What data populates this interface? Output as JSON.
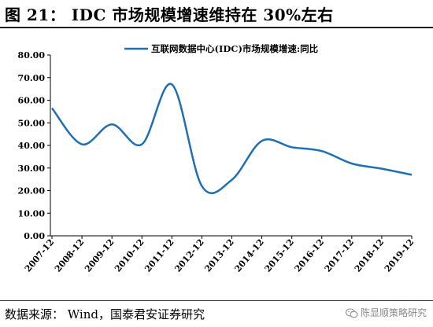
{
  "figure": {
    "title": "图 21： IDC 市场规模增速维持在 30%左右",
    "source": "数据来源： Wind，国泰君安证券研究",
    "watermark": "陈显顺策略研究",
    "watermark_icon": "wechat-icon"
  },
  "chart_data": {
    "type": "line",
    "title": "",
    "xlabel": "",
    "ylabel": "",
    "x": [
      "2007-12",
      "2008-12",
      "2009-12",
      "2010-12",
      "2011-12",
      "2012-12",
      "2013-12",
      "2014-12",
      "2015-12",
      "2016-12",
      "2017-12",
      "2018-12",
      "2019-12"
    ],
    "series": [
      {
        "name": "互联网数据中心(IDC)市场规模增速:同比",
        "values": [
          56.5,
          40.5,
          49.3,
          40.5,
          67.0,
          22.0,
          24.8,
          42.0,
          39.2,
          37.5,
          32.0,
          29.7,
          27.0
        ],
        "color": "#1f6fb3"
      }
    ],
    "yticks": [
      "0.00",
      "10.00",
      "20.00",
      "30.00",
      "40.00",
      "50.00",
      "60.00",
      "70.00",
      "80.00"
    ],
    "ylim": [
      0,
      80
    ],
    "grid": false,
    "legend_position": "top-center"
  }
}
